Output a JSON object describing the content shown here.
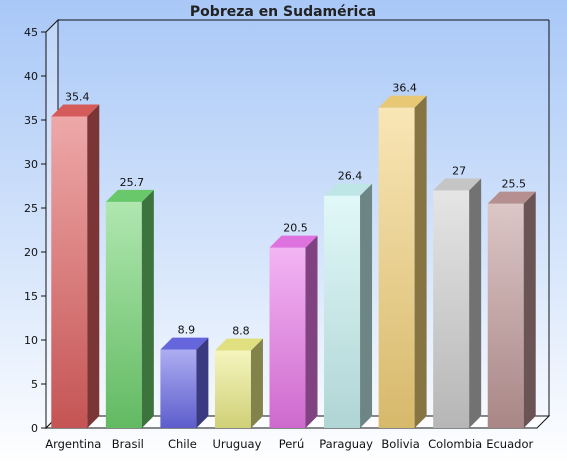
{
  "chart_data": {
    "type": "bar",
    "title": "Pobreza en Sudamérica",
    "xlabel": "",
    "ylabel": "",
    "ylim": [
      0,
      45
    ],
    "yticks": [
      0,
      5,
      10,
      15,
      20,
      25,
      30,
      35,
      40,
      45
    ],
    "grid": false,
    "legend": "none",
    "categories": [
      "Argentina",
      "Brasil",
      "Chile",
      "Uruguay",
      "Perú",
      "Paraguay",
      "Bolivia",
      "Colombia",
      "Ecuador"
    ],
    "values": [
      35.4,
      25.7,
      8.9,
      8.8,
      20.5,
      26.4,
      36.4,
      27,
      25.5
    ],
    "value_labels": [
      "35.4",
      "25.7",
      "8.9",
      "8.8",
      "20.5",
      "26.4",
      "36.4",
      "27",
      "25.5"
    ],
    "colors": [
      "#e06060",
      "#6fd36f",
      "#6a6ae8",
      "#ecec88",
      "#ea78ea",
      "#c8f2f2",
      "#f4d27a",
      "#cfcfcf",
      "#c09898"
    ]
  }
}
